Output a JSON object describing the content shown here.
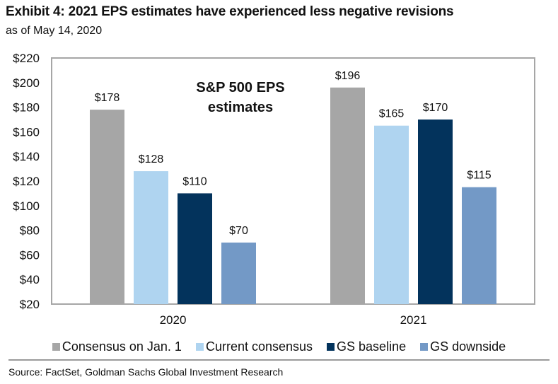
{
  "header": {
    "title": "Exhibit 4: 2021 EPS estimates have experienced less negative revisions",
    "subtitle": "as of May 14, 2020"
  },
  "chart_data": {
    "type": "bar",
    "title": "S&P 500 EPS estimates",
    "annotation": [
      "S&P 500 EPS",
      "estimates"
    ],
    "categories": [
      "2020",
      "2021"
    ],
    "series": [
      {
        "name": "Consensus on Jan. 1",
        "color": "#a6a6a6",
        "values": [
          178,
          196
        ]
      },
      {
        "name": "Current consensus",
        "color": "#afd4f0",
        "values": [
          128,
          165
        ]
      },
      {
        "name": "GS baseline",
        "color": "#03335c",
        "values": [
          110,
          170
        ]
      },
      {
        "name": "GS downside",
        "color": "#7399c6",
        "values": [
          70,
          115
        ]
      }
    ],
    "value_prefix": "$",
    "ylim": [
      20,
      220
    ],
    "yticks": [
      20,
      40,
      60,
      80,
      100,
      120,
      140,
      160,
      180,
      200,
      220
    ],
    "xlabel": "",
    "ylabel": "",
    "grid": false,
    "legend_position": "bottom"
  },
  "footer": {
    "source": "Source: FactSet, Goldman Sachs Global Investment Research"
  }
}
